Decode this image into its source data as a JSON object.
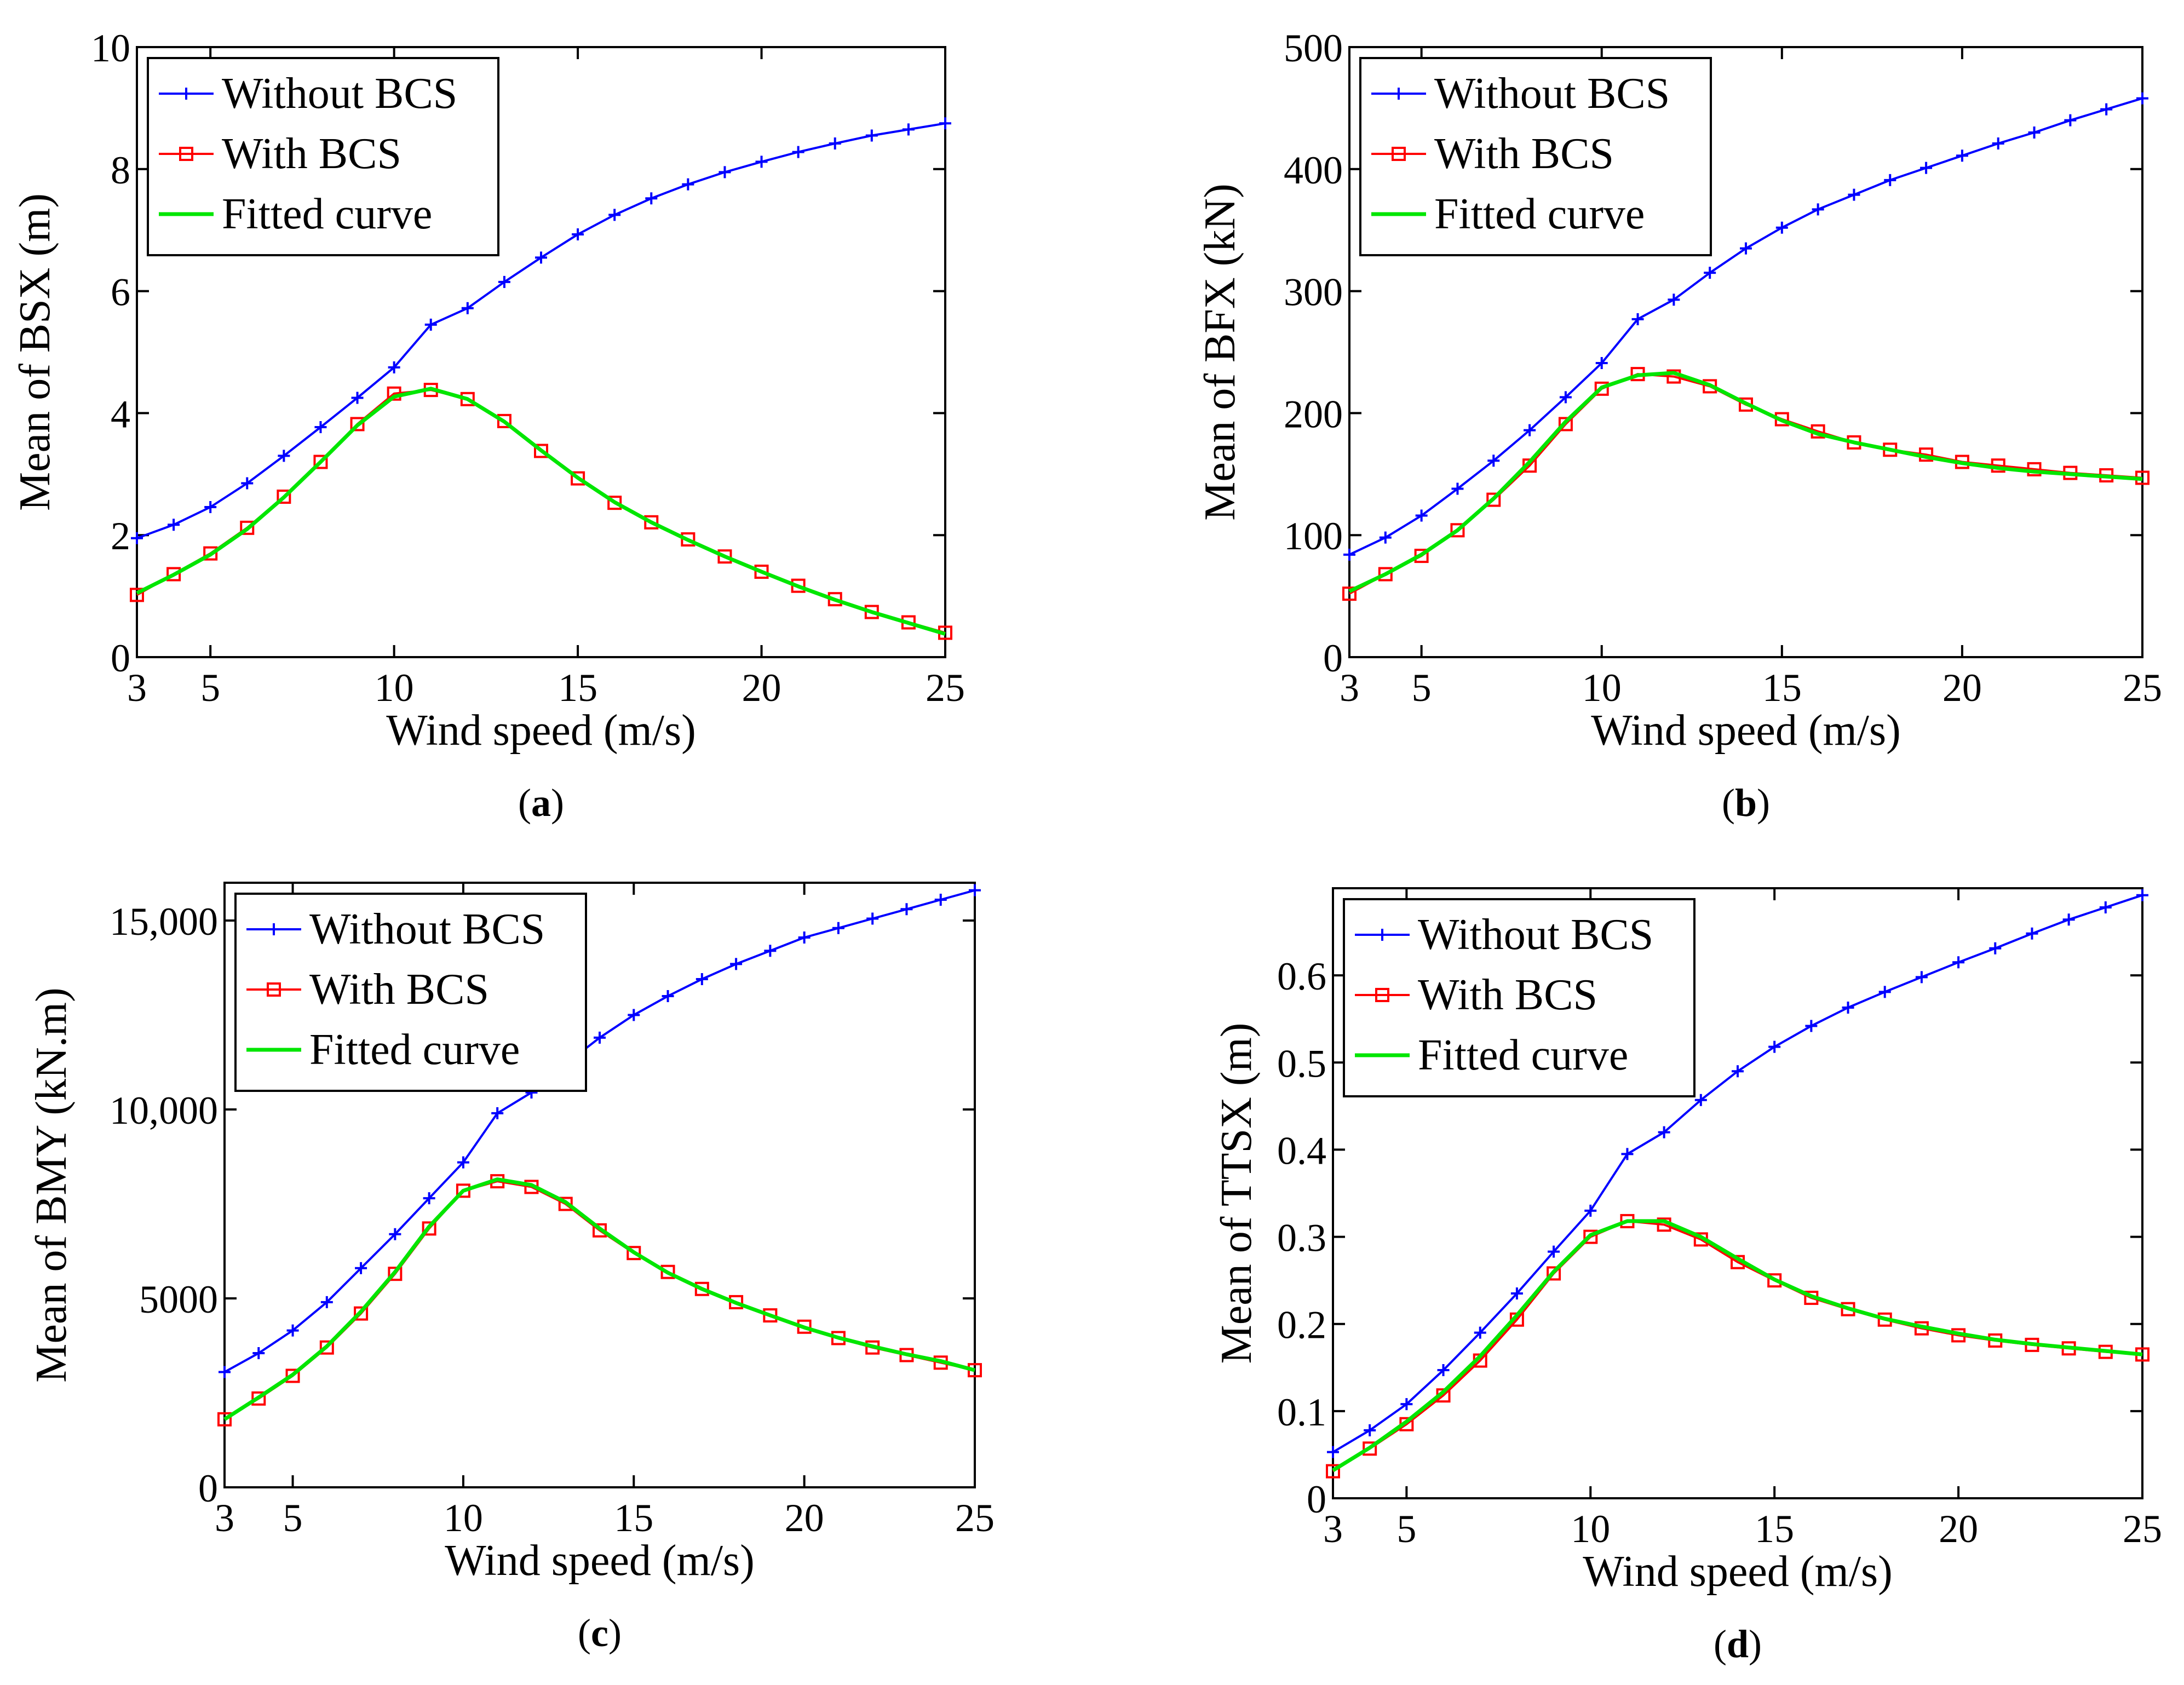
{
  "chart_data": [
    {
      "id": "a",
      "type": "line",
      "caption_letter": "a",
      "caption_open": "(",
      "caption_close": ")",
      "xlabel": "Wind speed (m/s)",
      "ylabel": "Mean of BSX (m)",
      "xlim": [
        3,
        25
      ],
      "ylim": [
        0,
        10
      ],
      "xticks": [
        3,
        5,
        10,
        15,
        20,
        25
      ],
      "xtick_labels": [
        "3",
        "5",
        "10",
        "15",
        "20",
        "25"
      ],
      "yticks": [
        0,
        2,
        4,
        6,
        8,
        10
      ],
      "ytick_labels": [
        "0",
        "2",
        "4",
        "6",
        "8",
        "10"
      ],
      "legend_position": "top-left",
      "x": [
        3,
        4,
        5,
        6,
        7,
        8,
        9,
        10,
        11,
        12,
        13,
        14,
        15,
        16,
        17,
        18,
        19,
        20,
        21,
        22,
        23,
        24,
        25
      ],
      "series": [
        {
          "name": "Without BCS",
          "color": "#0000ff",
          "marker": "plus",
          "values": [
            1.95,
            2.17,
            2.46,
            2.85,
            3.3,
            3.77,
            4.25,
            4.75,
            5.45,
            5.72,
            6.15,
            6.55,
            6.93,
            7.25,
            7.52,
            7.75,
            7.95,
            8.12,
            8.28,
            8.42,
            8.55,
            8.65,
            8.75
          ]
        },
        {
          "name": "With BCS",
          "color": "#ff0000",
          "marker": "square",
          "values": [
            1.02,
            1.36,
            1.7,
            2.12,
            2.63,
            3.2,
            3.82,
            4.32,
            4.38,
            4.23,
            3.87,
            3.38,
            2.93,
            2.53,
            2.21,
            1.93,
            1.65,
            1.4,
            1.17,
            0.95,
            0.74,
            0.57,
            0.4
          ]
        },
        {
          "name": "Fitted curve",
          "color": "#00e600",
          "marker": "none",
          "values": [
            1.05,
            1.35,
            1.68,
            2.1,
            2.62,
            3.2,
            3.8,
            4.27,
            4.4,
            4.23,
            3.86,
            3.39,
            2.94,
            2.54,
            2.21,
            1.92,
            1.65,
            1.4,
            1.16,
            0.94,
            0.74,
            0.56,
            0.38
          ]
        }
      ]
    },
    {
      "id": "b",
      "type": "line",
      "caption_letter": "b",
      "caption_open": "(",
      "caption_close": ")",
      "xlabel": "Wind speed (m/s)",
      "ylabel": "Mean of BFX (kN)",
      "xlim": [
        3,
        25
      ],
      "ylim": [
        0,
        500
      ],
      "xticks": [
        3,
        5,
        10,
        15,
        20,
        25
      ],
      "xtick_labels": [
        "3",
        "5",
        "10",
        "15",
        "20",
        "25"
      ],
      "yticks": [
        0,
        100,
        200,
        300,
        400,
        500
      ],
      "ytick_labels": [
        "0",
        "100",
        "200",
        "300",
        "400",
        "500"
      ],
      "legend_position": "top-left",
      "x": [
        3,
        4,
        5,
        6,
        7,
        8,
        9,
        10,
        11,
        12,
        13,
        14,
        15,
        16,
        17,
        18,
        19,
        20,
        21,
        22,
        23,
        24,
        25
      ],
      "series": [
        {
          "name": "Without BCS",
          "color": "#0000ff",
          "marker": "plus",
          "values": [
            84,
            98,
            116,
            138,
            161,
            186,
            213,
            241,
            277,
            293,
            315,
            335,
            352,
            367,
            379,
            391,
            401,
            411,
            421,
            430,
            440,
            449,
            458
          ]
        },
        {
          "name": "With BCS",
          "color": "#ff0000",
          "marker": "square",
          "values": [
            52,
            68,
            83,
            104,
            129,
            157,
            191,
            220,
            232,
            230,
            222,
            207,
            195,
            185,
            176,
            170,
            166,
            160,
            157,
            154,
            151,
            149,
            147
          ]
        },
        {
          "name": "Fitted curve",
          "color": "#00e600",
          "marker": "none",
          "values": [
            54,
            68,
            84,
            104,
            130,
            160,
            193,
            221,
            231,
            233,
            223,
            208,
            194,
            183,
            176,
            170,
            164,
            159,
            155,
            152,
            150,
            148,
            146
          ]
        }
      ]
    },
    {
      "id": "c",
      "type": "line",
      "caption_letter": "c",
      "caption_open": "(",
      "caption_close": ")",
      "xlabel": "Wind speed (m/s)",
      "ylabel": "Mean of BMY (kN.m)",
      "xlim": [
        3,
        25
      ],
      "ylim": [
        0,
        16000
      ],
      "xticks": [
        3,
        5,
        10,
        15,
        20,
        25
      ],
      "xtick_labels": [
        "3",
        "5",
        "10",
        "15",
        "20",
        "25"
      ],
      "yticks": [
        0,
        5000,
        10000,
        15000
      ],
      "ytick_labels": [
        "0",
        "5000",
        "10,000",
        "15,000"
      ],
      "legend_position": "top-left",
      "x": [
        3,
        4,
        5,
        6,
        7,
        8,
        9,
        10,
        11,
        12,
        13,
        14,
        15,
        16,
        17,
        18,
        19,
        20,
        21,
        22,
        23,
        24,
        25
      ],
      "series": [
        {
          "name": "Without BCS",
          "color": "#0000ff",
          "marker": "plus",
          "values": [
            3050,
            3550,
            4150,
            4900,
            5800,
            6700,
            7650,
            8600,
            9900,
            10450,
            11200,
            11900,
            12500,
            13000,
            13450,
            13850,
            14200,
            14550,
            14800,
            15050,
            15300,
            15550,
            15800
          ]
        },
        {
          "name": "With BCS",
          "color": "#ff0000",
          "marker": "square",
          "values": [
            1800,
            2350,
            2950,
            3700,
            4600,
            5650,
            6850,
            7850,
            8100,
            7950,
            7500,
            6800,
            6200,
            5700,
            5250,
            4900,
            4550,
            4250,
            3950,
            3700,
            3500,
            3300,
            3100
          ]
        },
        {
          "name": "Fitted curve",
          "color": "#00e600",
          "marker": "none",
          "values": [
            1800,
            2380,
            2980,
            3730,
            4650,
            5700,
            6900,
            7850,
            8150,
            8000,
            7550,
            6850,
            6220,
            5680,
            5250,
            4880,
            4550,
            4230,
            3960,
            3730,
            3520,
            3340,
            3100
          ]
        }
      ]
    },
    {
      "id": "d",
      "type": "line",
      "caption_letter": "d",
      "caption_open": "(",
      "caption_close": ")",
      "xlabel": "Wind speed (m/s)",
      "ylabel": "Mean of TTSX (m)",
      "xlim": [
        3,
        25
      ],
      "ylim": [
        0,
        0.7
      ],
      "xticks": [
        3,
        5,
        10,
        15,
        20,
        25
      ],
      "xtick_labels": [
        "3",
        "5",
        "10",
        "15",
        "20",
        "25"
      ],
      "yticks": [
        0,
        0.1,
        0.2,
        0.3,
        0.4,
        0.5,
        0.6
      ],
      "ytick_labels": [
        "0",
        "0.1",
        "0.2",
        "0.3",
        "0.4",
        "0.5",
        "0.6"
      ],
      "legend_position": "top-left",
      "x": [
        3,
        4,
        5,
        6,
        7,
        8,
        9,
        10,
        11,
        12,
        13,
        14,
        15,
        16,
        17,
        18,
        19,
        20,
        21,
        22,
        23,
        24,
        25
      ],
      "series": [
        {
          "name": "Without BCS",
          "color": "#0000ff",
          "marker": "plus",
          "values": [
            0.053,
            0.078,
            0.108,
            0.147,
            0.19,
            0.235,
            0.283,
            0.33,
            0.395,
            0.42,
            0.457,
            0.49,
            0.518,
            0.542,
            0.563,
            0.581,
            0.598,
            0.615,
            0.631,
            0.648,
            0.664,
            0.678,
            0.692
          ]
        },
        {
          "name": "With BCS",
          "color": "#ff0000",
          "marker": "square",
          "values": [
            0.031,
            0.057,
            0.085,
            0.118,
            0.158,
            0.205,
            0.258,
            0.3,
            0.318,
            0.314,
            0.297,
            0.271,
            0.25,
            0.23,
            0.217,
            0.205,
            0.195,
            0.187,
            0.181,
            0.176,
            0.172,
            0.168,
            0.165
          ]
        },
        {
          "name": "Fitted curve",
          "color": "#00e600",
          "marker": "none",
          "values": [
            0.032,
            0.058,
            0.088,
            0.122,
            0.163,
            0.21,
            0.26,
            0.302,
            0.318,
            0.318,
            0.3,
            0.275,
            0.251,
            0.232,
            0.218,
            0.206,
            0.197,
            0.189,
            0.182,
            0.177,
            0.173,
            0.169,
            0.165
          ]
        }
      ]
    }
  ]
}
